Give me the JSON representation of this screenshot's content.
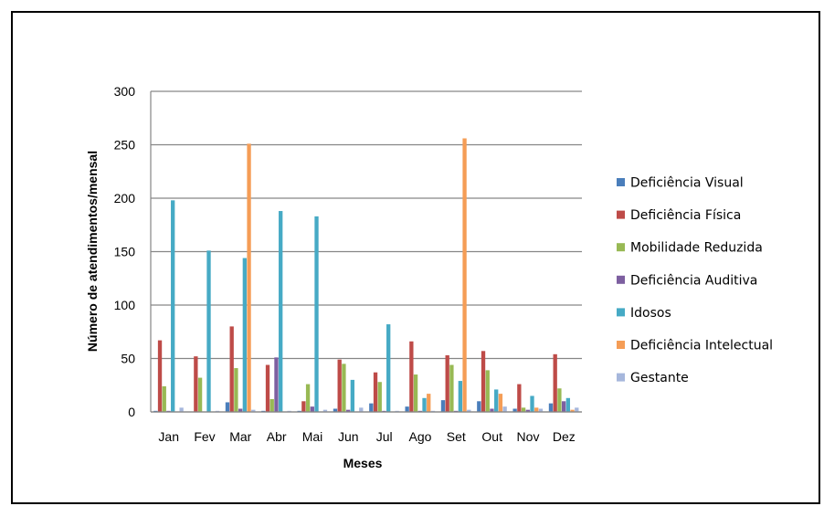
{
  "chart_data": {
    "type": "bar",
    "title": "",
    "xlabel": "Meses",
    "ylabel": "Número de atendimentos/mensal",
    "ylim": [
      0,
      300
    ],
    "yticks": [
      0,
      50,
      100,
      150,
      200,
      250,
      300
    ],
    "grid": true,
    "legend_position": "right",
    "categories": [
      "Jan",
      "Fev",
      "Mar",
      "Abr",
      "Mai",
      "Jun",
      "Jul",
      "Ago",
      "Set",
      "Out",
      "Nov",
      "Dez"
    ],
    "series": [
      {
        "name": "Deficiência Visual",
        "color": "#4a7ebb",
        "values": [
          1,
          0,
          9,
          1,
          1,
          3,
          8,
          5,
          11,
          10,
          3,
          8
        ]
      },
      {
        "name": "Deficiência Física",
        "color": "#be4b48",
        "values": [
          67,
          52,
          80,
          44,
          10,
          49,
          37,
          66,
          53,
          57,
          26,
          54
        ]
      },
      {
        "name": "Mobilidade Reduzida",
        "color": "#98b954",
        "values": [
          24,
          32,
          41,
          12,
          26,
          45,
          28,
          35,
          44,
          39,
          4,
          22
        ]
      },
      {
        "name": "Deficiência Auditiva",
        "color": "#7d5fa0",
        "values": [
          1,
          0,
          3,
          51,
          5,
          2,
          1,
          1,
          1,
          3,
          2,
          10
        ]
      },
      {
        "name": "Idosos",
        "color": "#46aac5",
        "values": [
          198,
          151,
          144,
          188,
          183,
          30,
          82,
          13,
          29,
          21,
          15,
          13
        ]
      },
      {
        "name": "Deficiência Intelectual",
        "color": "#f59d56",
        "values": [
          0,
          0,
          251,
          0,
          0,
          0,
          0,
          17,
          256,
          17,
          4,
          2
        ]
      },
      {
        "name": "Gestante",
        "color": "#a6b7dc",
        "values": [
          4,
          1,
          2,
          1,
          2,
          4,
          1,
          1,
          2,
          5,
          3,
          4
        ]
      }
    ]
  }
}
